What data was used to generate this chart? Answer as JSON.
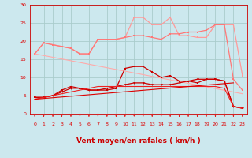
{
  "background_color": "#cce8ee",
  "grid_color": "#aacccc",
  "xlabel": "Vent moyen/en rafales ( km/h )",
  "xlim": [
    -0.5,
    23.5
  ],
  "ylim": [
    0,
    30
  ],
  "yticks": [
    0,
    5,
    10,
    15,
    20,
    25,
    30
  ],
  "xticks": [
    0,
    1,
    2,
    3,
    4,
    5,
    6,
    7,
    8,
    9,
    10,
    11,
    12,
    13,
    14,
    15,
    16,
    17,
    18,
    19,
    20,
    21,
    22,
    23
  ],
  "line_light_pink": {
    "x": [
      0,
      1,
      2,
      3,
      4,
      5,
      6,
      7,
      8,
      9,
      10,
      11,
      12,
      13,
      14,
      15,
      16,
      17,
      18,
      19,
      20,
      21,
      22,
      23
    ],
    "y": [
      16.5,
      19.5,
      19.0,
      18.5,
      18.0,
      16.5,
      16.5,
      20.5,
      20.5,
      20.5,
      21.0,
      26.5,
      26.5,
      24.5,
      24.5,
      26.5,
      21.5,
      21.5,
      21.0,
      21.0,
      24.5,
      24.5,
      24.5,
      10.5
    ],
    "color": "#ff9999",
    "lw": 0.9,
    "marker": "s",
    "ms": 2.0
  },
  "line_medium_pink": {
    "x": [
      0,
      1,
      2,
      3,
      4,
      5,
      6,
      7,
      8,
      9,
      10,
      11,
      12,
      13,
      14,
      15,
      16,
      17,
      18,
      19,
      20,
      21,
      22,
      23
    ],
    "y": [
      16.5,
      19.5,
      19.0,
      18.5,
      18.0,
      16.5,
      16.5,
      20.5,
      20.5,
      20.5,
      21.0,
      21.5,
      21.5,
      21.0,
      20.5,
      22.0,
      22.0,
      22.5,
      22.5,
      23.0,
      24.5,
      24.5,
      9.5,
      6.5
    ],
    "color": "#ff7777",
    "lw": 0.9,
    "marker": "s",
    "ms": 2.0
  },
  "line_diagonal_pink": {
    "x": [
      0,
      23
    ],
    "y": [
      16.5,
      5.5
    ],
    "color": "#ffaaaa",
    "lw": 0.8
  },
  "line_red_spiky": {
    "x": [
      0,
      1,
      2,
      3,
      4,
      5,
      6,
      7,
      8,
      9,
      10,
      11,
      12,
      13,
      14,
      15,
      16,
      17,
      18,
      19,
      20,
      21,
      22,
      23
    ],
    "y": [
      4.5,
      4.5,
      5.0,
      6.5,
      7.5,
      7.0,
      6.5,
      6.5,
      6.5,
      7.0,
      12.5,
      13.0,
      13.0,
      11.5,
      10.0,
      10.5,
      9.0,
      9.0,
      8.5,
      9.5,
      9.5,
      9.0,
      2.0,
      1.5
    ],
    "color": "#cc0000",
    "lw": 0.9,
    "marker": "s",
    "ms": 2.0
  },
  "line_red_smooth": {
    "x": [
      0,
      1,
      2,
      3,
      4,
      5,
      6,
      7,
      8,
      9,
      10,
      11,
      12,
      13,
      14,
      15,
      16,
      17,
      18,
      19,
      20,
      21,
      22,
      23
    ],
    "y": [
      4.5,
      4.5,
      5.0,
      6.0,
      7.0,
      7.0,
      6.5,
      6.5,
      7.0,
      7.5,
      8.0,
      8.5,
      8.5,
      8.0,
      8.0,
      8.0,
      8.5,
      9.0,
      9.5,
      9.5,
      9.5,
      9.0,
      2.0,
      1.5
    ],
    "color": "#cc0000",
    "lw": 0.9,
    "marker": "v",
    "ms": 2.0
  },
  "line_red_rising": {
    "x": [
      0,
      1,
      2,
      3,
      4,
      5,
      6,
      7,
      8,
      9,
      10,
      11,
      12,
      13,
      14,
      15,
      16,
      17,
      18,
      19,
      20,
      21,
      22,
      23
    ],
    "y": [
      4.0,
      4.5,
      5.0,
      5.5,
      6.0,
      6.5,
      7.0,
      7.5,
      7.5,
      7.5,
      7.5,
      7.5,
      7.5,
      7.5,
      7.5,
      7.5,
      7.5,
      7.5,
      7.5,
      7.5,
      7.5,
      7.0,
      2.0,
      1.5
    ],
    "color": "#ee2222",
    "lw": 0.8
  },
  "line_red_diagonal": {
    "x": [
      0,
      22
    ],
    "y": [
      4.0,
      8.5
    ],
    "color": "#dd0000",
    "lw": 0.8
  },
  "arrows_x": [
    0,
    1,
    2,
    3,
    4,
    5,
    6,
    7,
    8,
    9,
    10,
    11,
    12,
    13,
    14,
    15,
    16,
    17,
    18,
    19,
    20,
    21,
    22,
    23
  ],
  "arrow_color": "#dd2222",
  "axis_color": "#cc0000",
  "tick_label_color": "#dd0000",
  "xlabel_color": "#cc0000",
  "xlabel_fontsize": 6.5,
  "tick_fontsize": 4.5
}
